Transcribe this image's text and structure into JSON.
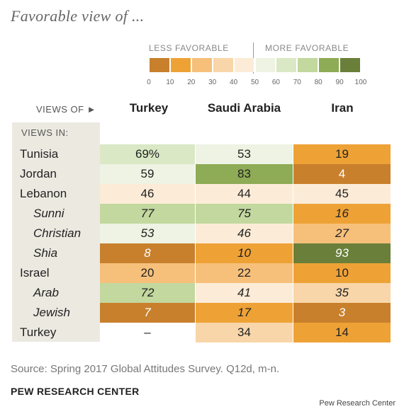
{
  "title": "Favorable view of ...",
  "legend": {
    "less_label": "LESS FAVORABLE",
    "more_label": "MORE FAVORABLE",
    "ticks": [
      "0",
      "10",
      "20",
      "30",
      "40",
      "50",
      "60",
      "70",
      "80",
      "90",
      "100"
    ],
    "colors": [
      "#c8802d",
      "#eea236",
      "#f6c07b",
      "#f8d6a9",
      "#fcecd7",
      "#eef3e3",
      "#dae8c5",
      "#c2d89e",
      "#8eab55",
      "#6a7f3a"
    ]
  },
  "views_of_label": "VIEWS OF ►",
  "views_in_label": "VIEWS IN:",
  "source": "Source: Spring 2017 Global Attitudes Survey. Q12d, m-n.",
  "org": "PEW RESEARCH CENTER",
  "credit": "Pew Research Center",
  "chart_data": {
    "type": "table",
    "title": "Favorable view of ...",
    "columns": [
      "Turkey",
      "Saudi Arabia",
      "Iran"
    ],
    "rows": [
      {
        "label": "Tunisia",
        "sub": false,
        "values": [
          69,
          53,
          19
        ],
        "display": [
          "69%",
          "53",
          "19"
        ]
      },
      {
        "label": "Jordan",
        "sub": false,
        "values": [
          59,
          83,
          4
        ],
        "display": [
          "59",
          "83",
          "4"
        ]
      },
      {
        "label": "Lebanon",
        "sub": false,
        "values": [
          46,
          44,
          45
        ],
        "display": [
          "46",
          "44",
          "45"
        ]
      },
      {
        "label": "Sunni",
        "sub": true,
        "values": [
          77,
          75,
          16
        ],
        "display": [
          "77",
          "75",
          "16"
        ]
      },
      {
        "label": "Christian",
        "sub": true,
        "values": [
          53,
          46,
          27
        ],
        "display": [
          "53",
          "46",
          "27"
        ]
      },
      {
        "label": "Shia",
        "sub": true,
        "values": [
          8,
          10,
          93
        ],
        "display": [
          "8",
          "10",
          "93"
        ]
      },
      {
        "label": "Israel",
        "sub": false,
        "values": [
          20,
          22,
          10
        ],
        "display": [
          "20",
          "22",
          "10"
        ]
      },
      {
        "label": "Arab",
        "sub": true,
        "values": [
          72,
          41,
          35
        ],
        "display": [
          "72",
          "41",
          "35"
        ]
      },
      {
        "label": "Jewish",
        "sub": true,
        "values": [
          7,
          17,
          3
        ],
        "display": [
          "7",
          "17",
          "3"
        ]
      },
      {
        "label": "Turkey",
        "sub": false,
        "values": [
          null,
          34,
          14
        ],
        "display": [
          "–",
          "34",
          "14"
        ]
      }
    ],
    "scale": [
      0,
      100
    ]
  }
}
